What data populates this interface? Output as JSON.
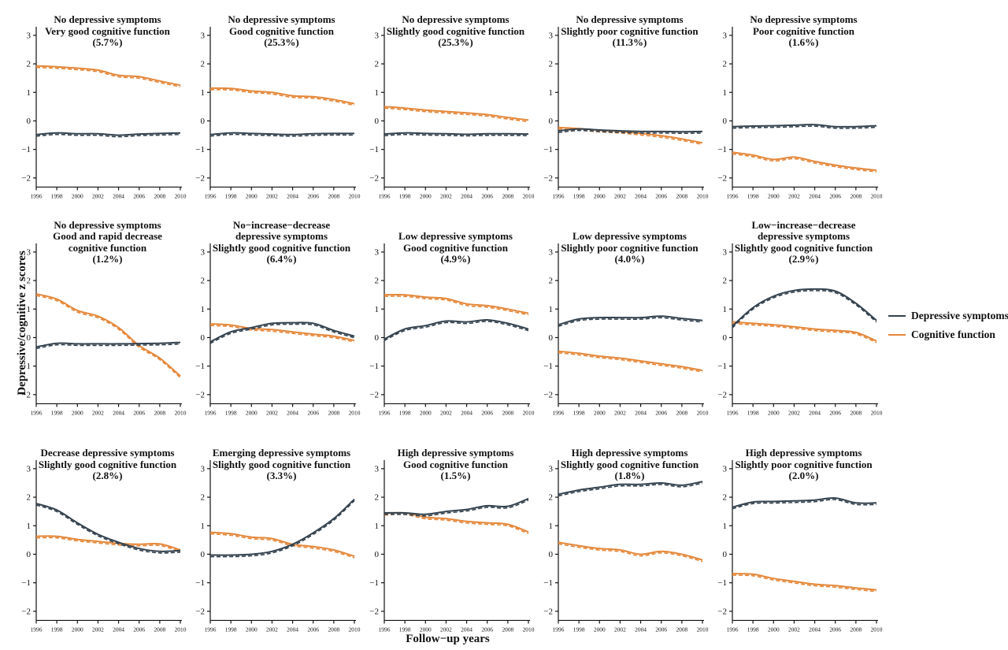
{
  "figure_name": "Depressive and cognitive trajectory classes, 15-panel line figure",
  "colors": {
    "depressive": "#33424e",
    "cognitive": "#e58638",
    "text": "#111111",
    "background": "#ffffff"
  },
  "chart_data": {
    "type": "line",
    "x": [
      1996,
      1998,
      2000,
      2002,
      2004,
      2006,
      2008,
      2010
    ],
    "xticks": [
      1996,
      1998,
      2000,
      2002,
      2004,
      2006,
      2008,
      2010
    ],
    "yticks": [
      -2,
      -1,
      0,
      1,
      2,
      3
    ],
    "ylim": [
      -2.32,
      3.3
    ],
    "xlabel": "Follow−up years",
    "ylabel": "Depressive/cognitive z scores",
    "grid": "off",
    "line_variants": [
      "solid",
      "dashed (near-overlapping estimated curve)"
    ],
    "legend": {
      "position": "right-middle",
      "entries": [
        {
          "name": "Depressive symptoms",
          "color": "#33424e"
        },
        {
          "name": "Cognitive function",
          "color": "#e58638"
        }
      ]
    },
    "panels": [
      {
        "title_lines": [
          "No depressive symptoms",
          "Very good cognitive function"
        ],
        "percent": "(5.7%)",
        "series": {
          "depressive": [
            -0.48,
            -0.42,
            -0.45,
            -0.45,
            -0.5,
            -0.46,
            -0.44,
            -0.42
          ],
          "cognitive": [
            1.93,
            1.9,
            1.85,
            1.78,
            1.6,
            1.55,
            1.4,
            1.25
          ]
        }
      },
      {
        "title_lines": [
          "No depressive symptoms",
          "Good cognitive function"
        ],
        "percent": "(25.3%)",
        "series": {
          "depressive": [
            -0.48,
            -0.42,
            -0.44,
            -0.46,
            -0.48,
            -0.45,
            -0.44,
            -0.44
          ],
          "cognitive": [
            1.15,
            1.14,
            1.05,
            1.0,
            0.88,
            0.85,
            0.75,
            0.6
          ]
        }
      },
      {
        "title_lines": [
          "No depressive symptoms",
          "Slightly good cognitive function"
        ],
        "percent": "(25.3%)",
        "series": {
          "depressive": [
            -0.46,
            -0.42,
            -0.44,
            -0.45,
            -0.47,
            -0.45,
            -0.45,
            -0.46
          ],
          "cognitive": [
            0.5,
            0.45,
            0.38,
            0.33,
            0.28,
            0.22,
            0.12,
            0.03
          ]
        }
      },
      {
        "title_lines": [
          "No depressive symptoms",
          "Slightly poor cognitive function"
        ],
        "percent": "(11.3%)",
        "series": {
          "depressive": [
            -0.35,
            -0.28,
            -0.32,
            -0.35,
            -0.37,
            -0.37,
            -0.38,
            -0.37
          ],
          "cognitive": [
            -0.23,
            -0.27,
            -0.33,
            -0.37,
            -0.44,
            -0.52,
            -0.63,
            -0.77
          ]
        }
      },
      {
        "title_lines": [
          "No depressive symptoms",
          "Poor cognitive function"
        ],
        "percent": "(1.6%)",
        "series": {
          "depressive": [
            -0.2,
            -0.18,
            -0.17,
            -0.15,
            -0.13,
            -0.2,
            -0.2,
            -0.17
          ],
          "cognitive": [
            -1.1,
            -1.2,
            -1.35,
            -1.27,
            -1.42,
            -1.55,
            -1.65,
            -1.73
          ]
        }
      },
      {
        "title_lines": [
          "No depressive symptoms",
          "Good and rapid decrease",
          "cognitive function"
        ],
        "percent": "(1.2%)",
        "series": {
          "depressive": [
            -0.33,
            -0.2,
            -0.22,
            -0.22,
            -0.22,
            -0.21,
            -0.2,
            -0.17
          ],
          "cognitive": [
            1.53,
            1.35,
            0.95,
            0.75,
            0.35,
            -0.28,
            -0.72,
            -1.35
          ]
        }
      },
      {
        "title_lines": [
          "No−increase−decrease",
          "depressive symptoms",
          "Slightly good cognitive function"
        ],
        "percent": "(6.4%)",
        "series": {
          "depressive": [
            -0.15,
            0.2,
            0.35,
            0.5,
            0.52,
            0.5,
            0.25,
            0.05
          ],
          "cognitive": [
            0.48,
            0.44,
            0.32,
            0.28,
            0.2,
            0.12,
            0.05,
            -0.1
          ]
        }
      },
      {
        "title_lines": [
          "Low depressive symptoms",
          "Good cognitive function"
        ],
        "percent": "(4.9%)",
        "series": {
          "depressive": [
            -0.05,
            0.3,
            0.42,
            0.58,
            0.55,
            0.62,
            0.5,
            0.3
          ],
          "cognitive": [
            1.5,
            1.5,
            1.42,
            1.37,
            1.18,
            1.12,
            1.0,
            0.85
          ]
        }
      },
      {
        "title_lines": [
          "Low depressive symptoms",
          "Slightly poor cognitive function"
        ],
        "percent": "(4.0%)",
        "series": {
          "depressive": [
            0.45,
            0.65,
            0.7,
            0.7,
            0.7,
            0.75,
            0.67,
            0.6
          ],
          "cognitive": [
            -0.48,
            -0.55,
            -0.65,
            -0.72,
            -0.82,
            -0.92,
            -1.02,
            -1.15
          ]
        }
      },
      {
        "title_lines": [
          "Low−increase−decrease",
          "depressive symptoms",
          "Slightly good cognitive function"
        ],
        "percent": "(2.9%)",
        "series": {
          "depressive": [
            0.4,
            1.05,
            1.45,
            1.65,
            1.7,
            1.63,
            1.2,
            0.6
          ],
          "cognitive": [
            0.55,
            0.5,
            0.45,
            0.38,
            0.3,
            0.25,
            0.18,
            -0.12
          ]
        }
      },
      {
        "title_lines": [
          "Decrease depressive symptoms",
          "Slightly good cognitive function"
        ],
        "percent": "(2.8%)",
        "series": {
          "depressive": [
            1.78,
            1.55,
            1.1,
            0.7,
            0.42,
            0.2,
            0.1,
            0.13
          ],
          "cognitive": [
            0.63,
            0.63,
            0.52,
            0.45,
            0.38,
            0.35,
            0.36,
            0.15
          ]
        }
      },
      {
        "title_lines": [
          "Emerging depressive symptoms",
          "Slightly good cognitive function"
        ],
        "percent": "(3.3%)",
        "series": {
          "depressive": [
            -0.03,
            -0.03,
            0.0,
            0.1,
            0.35,
            0.75,
            1.25,
            1.93
          ],
          "cognitive": [
            0.77,
            0.72,
            0.6,
            0.55,
            0.35,
            0.27,
            0.15,
            -0.07
          ]
        }
      },
      {
        "title_lines": [
          "High depressive symptoms",
          "Good cognitive function"
        ],
        "percent": "(1.5%)",
        "series": {
          "depressive": [
            1.45,
            1.45,
            1.4,
            1.5,
            1.57,
            1.7,
            1.68,
            1.95
          ],
          "cognitive": [
            1.43,
            1.45,
            1.3,
            1.25,
            1.15,
            1.1,
            1.05,
            0.78
          ]
        }
      },
      {
        "title_lines": [
          "High depressive symptoms",
          "Slightly good cognitive function"
        ],
        "percent": "(1.8%)",
        "series": {
          "depressive": [
            2.1,
            2.25,
            2.35,
            2.45,
            2.45,
            2.5,
            2.42,
            2.55
          ],
          "cognitive": [
            0.42,
            0.3,
            0.2,
            0.15,
            0.0,
            0.1,
            0.0,
            -0.2
          ]
        }
      },
      {
        "title_lines": [
          "High depressive symptoms",
          "Slightly poor cognitive function"
        ],
        "percent": "(2.0%)",
        "series": {
          "depressive": [
            1.65,
            1.83,
            1.85,
            1.87,
            1.9,
            1.97,
            1.8,
            1.8
          ],
          "cognitive": [
            -0.68,
            -0.7,
            -0.85,
            -0.95,
            -1.05,
            -1.1,
            -1.18,
            -1.25
          ]
        }
      }
    ]
  }
}
